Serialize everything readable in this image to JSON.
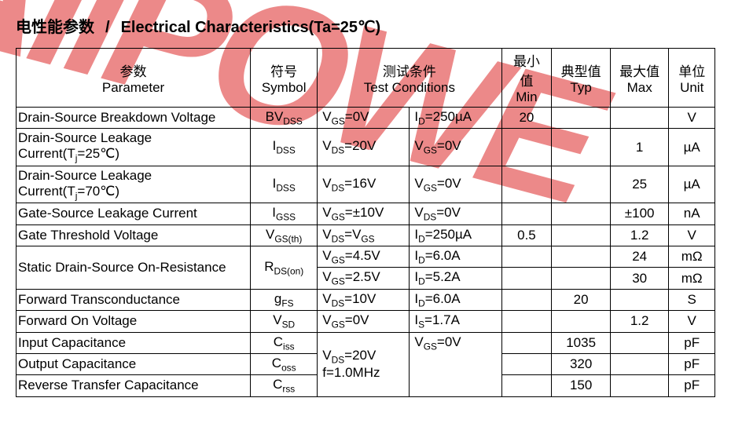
{
  "heading": {
    "cn": "电性能参数",
    "slash": "/",
    "en": "Electrical Characteristics(Ta=25℃)"
  },
  "headers": {
    "param_cn": "参数",
    "param_en": "Parameter",
    "symbol_cn": "符号",
    "symbol_en": "Symbol",
    "tc_cn": "测试条件",
    "tc_en": "Test Conditions",
    "min_cn": "最小值",
    "min_en": "Min",
    "typ_cn": "典型值",
    "typ_en": "Typ",
    "max_cn": "最大值",
    "max_en": "Max",
    "unit_cn": "单位",
    "unit_en": "Unit"
  },
  "rows": {
    "r0": {
      "param": "Drain-Source Breakdown Voltage",
      "sym": "BV",
      "sub": "DSS",
      "tc1a": "V",
      "tc1s": "GS",
      "tc1b": "=0V",
      "tc2a": "I",
      "tc2s": "D",
      "tc2b": "=250µA",
      "min": "20",
      "typ": "",
      "max": "",
      "unit": "V"
    },
    "r1": {
      "param": "Drain-Source Leakage Current(Tj=25℃)",
      "sym": "I",
      "sub": "DSS",
      "tc1a": "V",
      "tc1s": "DS",
      "tc1b": "=20V",
      "tc2a": "V",
      "tc2s": "GS",
      "tc2b": "=0V",
      "min": "",
      "typ": "",
      "max": "1",
      "unit": "µA"
    },
    "r2": {
      "param": "Drain-Source Leakage Current(Tj=70℃)",
      "sym": "I",
      "sub": "DSS",
      "tc1a": "V",
      "tc1s": "DS",
      "tc1b": "=16V",
      "tc2a": "V",
      "tc2s": "GS",
      "tc2b": "=0V",
      "min": "",
      "typ": "",
      "max": "25",
      "unit": "µA"
    },
    "r3": {
      "param": "Gate-Source Leakage Current",
      "sym": "I",
      "sub": "GSS",
      "tc1a": "V",
      "tc1s": "GS",
      "tc1b": "=±10V",
      "tc2a": "V",
      "tc2s": "DS",
      "tc2b": "=0V",
      "min": "",
      "typ": "",
      "max": "±100",
      "unit": "nA"
    },
    "r4": {
      "param": "Gate Threshold Voltage",
      "sym": "V",
      "sub": "GS(th)",
      "tc1a": "V",
      "tc1s": "DS",
      "tc1b": "=V",
      "tc1s2": "GS",
      "tc2a": "I",
      "tc2s": "D",
      "tc2b": "=250µA",
      "min": "0.5",
      "typ": "",
      "max": "1.2",
      "unit": "V"
    },
    "r5a": {
      "param": "Static Drain-Source On-Resistance",
      "sym": "R",
      "sub": "DS(on)",
      "tc1a": "V",
      "tc1s": "GS",
      "tc1b": "=4.5V",
      "tc2a": "I",
      "tc2s": "D",
      "tc2b": "=6.0A",
      "min": "",
      "typ": "",
      "max": "24",
      "unit": "mΩ"
    },
    "r5b": {
      "tc1a": "V",
      "tc1s": "GS",
      "tc1b": "=2.5V",
      "tc2a": "I",
      "tc2s": "D",
      "tc2b": "=5.2A",
      "min": "",
      "typ": "",
      "max": "30",
      "unit": "mΩ"
    },
    "r6": {
      "param": "Forward Transconductance",
      "sym": "g",
      "sub": "FS",
      "tc1a": "V",
      "tc1s": "DS",
      "tc1b": "=10V",
      "tc2a": "I",
      "tc2s": "D",
      "tc2b": "=6.0A",
      "min": "",
      "typ": "20",
      "max": "",
      "unit": "S"
    },
    "r7": {
      "param": "Forward On Voltage",
      "sym": "V",
      "sub": "SD",
      "tc1a": "V",
      "tc1s": "GS",
      "tc1b": "=0V",
      "tc2a": "I",
      "tc2s": "S",
      "tc2b": "=1.7A",
      "min": "",
      "typ": "",
      "max": "1.2",
      "unit": "V"
    },
    "r8": {
      "param": "Input Capacitance",
      "sym": "C",
      "sub": "iss",
      "min": "",
      "typ": "1035",
      "max": "",
      "unit": "pF"
    },
    "r9": {
      "param": "Output Capacitance",
      "sym": "C",
      "sub": "oss",
      "min": "",
      "typ": "320",
      "max": "",
      "unit": "pF"
    },
    "r10": {
      "param": "Reverse Transfer Capacitance",
      "sym": "C",
      "sub": "rss",
      "min": "",
      "typ": "150",
      "max": "",
      "unit": "pF"
    },
    "cap_tc": {
      "l1a": "V",
      "l1s": "DS",
      "l1b": "=20V",
      "l2": "f=1.0MHz",
      "r1a": "V",
      "r1s": "GS",
      "r1b": "=0V"
    }
  },
  "style": {
    "border_color": "#000000",
    "watermark_color": "rgba(220,40,40,0.55)",
    "font_family": "Arial",
    "heading_fontsize_pt": 15,
    "cell_fontsize_pt": 13
  }
}
